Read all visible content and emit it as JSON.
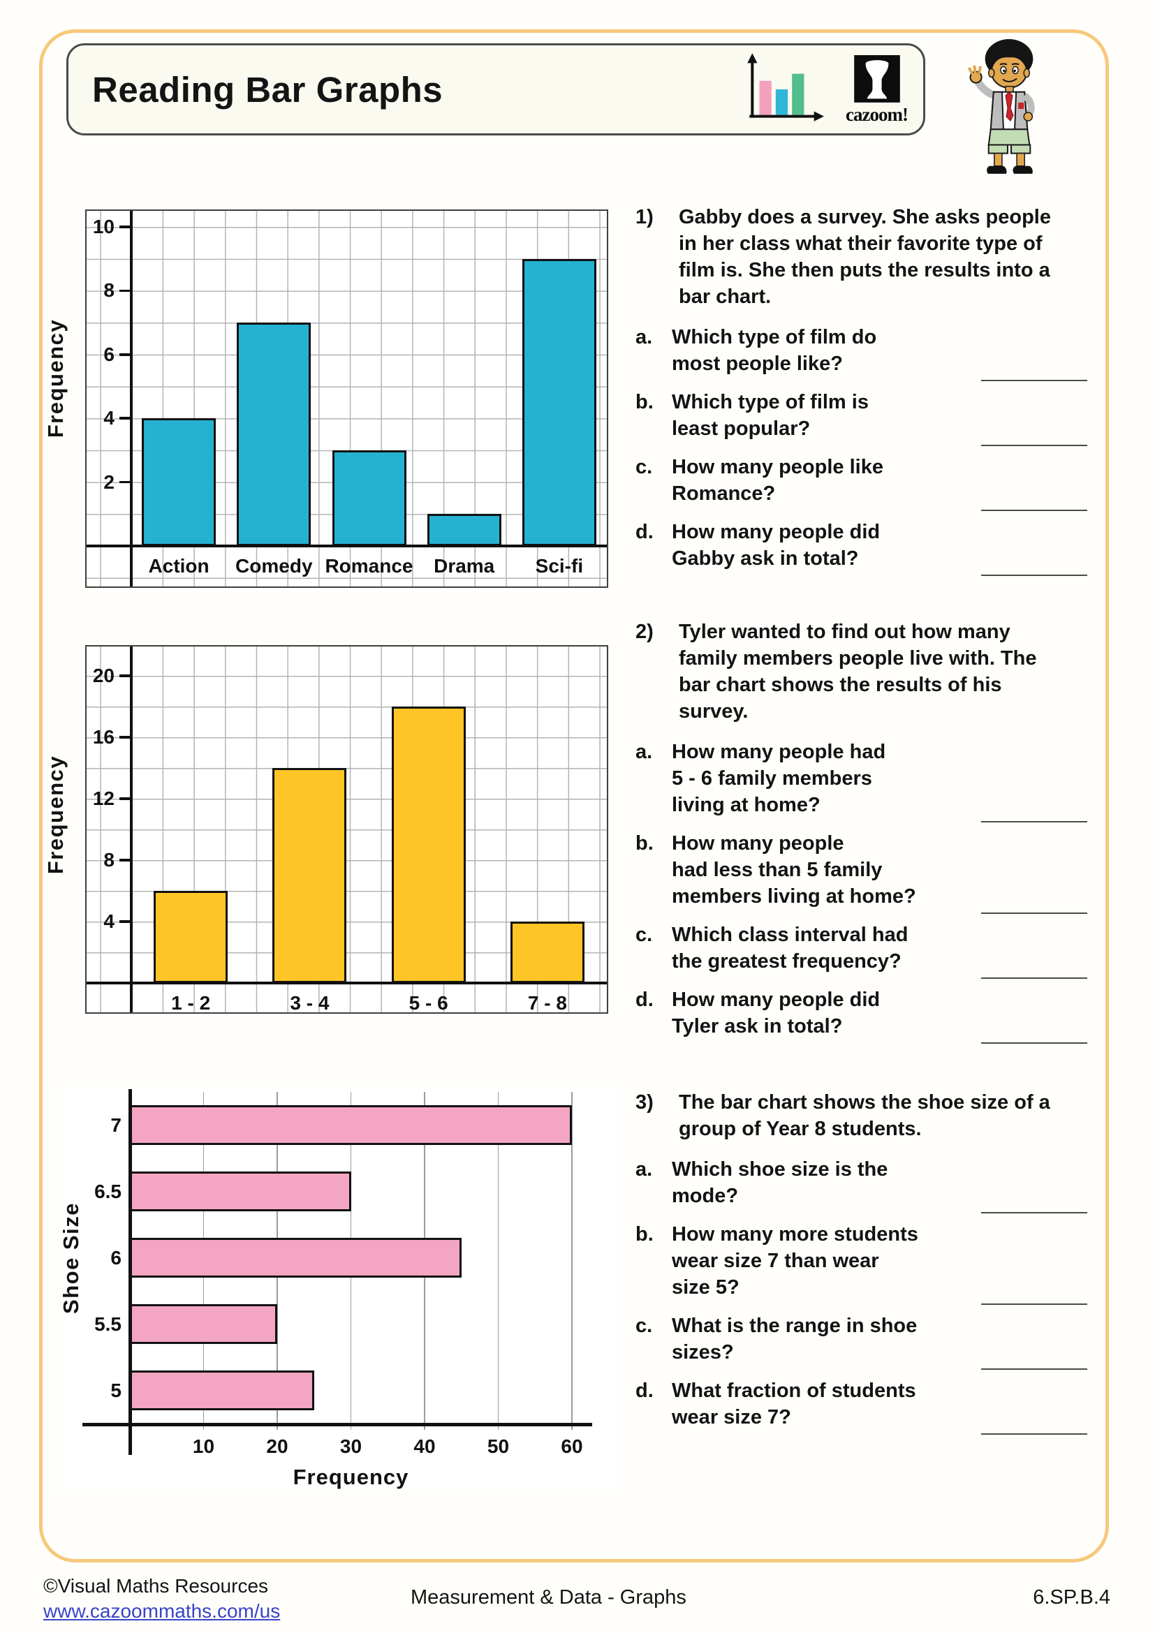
{
  "header": {
    "title": "Reading Bar Graphs",
    "logo_text": "cazoom!"
  },
  "colors": {
    "frame": "#F7C87A",
    "bar_cyan": "#25B2D1",
    "bar_yellow": "#FFC527",
    "bar_pink": "#F3A5C3",
    "link_blue": "#3744C8",
    "icon_pink": "#F2A0BC",
    "icon_cyan": "#2FB6D8",
    "icon_green": "#52BE8C"
  },
  "chart_data": [
    {
      "type": "bar",
      "orientation": "vertical",
      "categories": [
        "Action",
        "Comedy",
        "Romance",
        "Drama",
        "Sci-fi"
      ],
      "values": [
        4,
        7,
        3,
        1,
        9
      ],
      "title": "",
      "xlabel": "",
      "ylabel": "Frequency",
      "yticks": [
        2,
        4,
        6,
        8,
        10
      ],
      "ylim": [
        0,
        10.5
      ],
      "grid": "graph-paper",
      "bar_color": "#25B2D1"
    },
    {
      "type": "bar",
      "orientation": "vertical",
      "categories": [
        "1 - 2",
        "3 - 4",
        "5 - 6",
        "7 - 8"
      ],
      "values": [
        6,
        14,
        18,
        4
      ],
      "title": "",
      "xlabel": "",
      "ylabel": "Frequency",
      "yticks": [
        4,
        8,
        12,
        16,
        20
      ],
      "ylim": [
        0,
        21.5
      ],
      "grid": "graph-paper",
      "bar_color": "#FFC527"
    },
    {
      "type": "bar",
      "orientation": "horizontal",
      "categories": [
        "7",
        "6.5",
        "6",
        "5.5",
        "5"
      ],
      "values": [
        60,
        30,
        45,
        20,
        25
      ],
      "title": "",
      "xlabel": "Frequency",
      "ylabel": "Shoe Size",
      "xticks": [
        10,
        20,
        30,
        40,
        50,
        60
      ],
      "xlim": [
        0,
        65
      ],
      "grid": "vertical-only",
      "bar_color": "#F3A5C3"
    }
  ],
  "questions": [
    {
      "number": "1)",
      "intro": "Gabby does a survey. She asks people\nin her class what their favorite type of\nfilm is. She then puts the results into a\nbar chart.",
      "parts": [
        {
          "letter": "a.",
          "text": "Which type of film do\nmost people like?"
        },
        {
          "letter": "b.",
          "text": "Which type of film is\nleast popular?"
        },
        {
          "letter": "c.",
          "text": "How many people like\nRomance?"
        },
        {
          "letter": "d.",
          "text": "How many people did\nGabby ask in total?"
        }
      ]
    },
    {
      "number": "2)",
      "intro": "Tyler wanted to find out how many\nfamily members people live with. The\nbar chart shows the results of his\nsurvey.",
      "parts": [
        {
          "letter": "a.",
          "text": "How many people had\n5 - 6 family members\nliving at home?"
        },
        {
          "letter": "b.",
          "text": "How many people\nhad less than 5 family\nmembers living at home?"
        },
        {
          "letter": "c.",
          "text": "Which class interval had\nthe greatest frequency?"
        },
        {
          "letter": "d.",
          "text": "How many people did\nTyler ask in total?"
        }
      ]
    },
    {
      "number": "3)",
      "intro": "The bar chart shows the shoe size of a\ngroup of Year 8 students.",
      "parts": [
        {
          "letter": "a.",
          "text": "Which shoe size is the\nmode?"
        },
        {
          "letter": "b.",
          "text": "How many more students\nwear size 7 than wear\nsize 5?"
        },
        {
          "letter": "c.",
          "text": "What is the range in shoe\nsizes?"
        },
        {
          "letter": "d.",
          "text": "What fraction of students\nwear size 7?"
        }
      ]
    }
  ],
  "footer": {
    "copyright": "©Visual Maths Resources",
    "url": "www.cazoommaths.com/us",
    "center": "Measurement & Data - Graphs",
    "right": "6.SP.B.4"
  }
}
